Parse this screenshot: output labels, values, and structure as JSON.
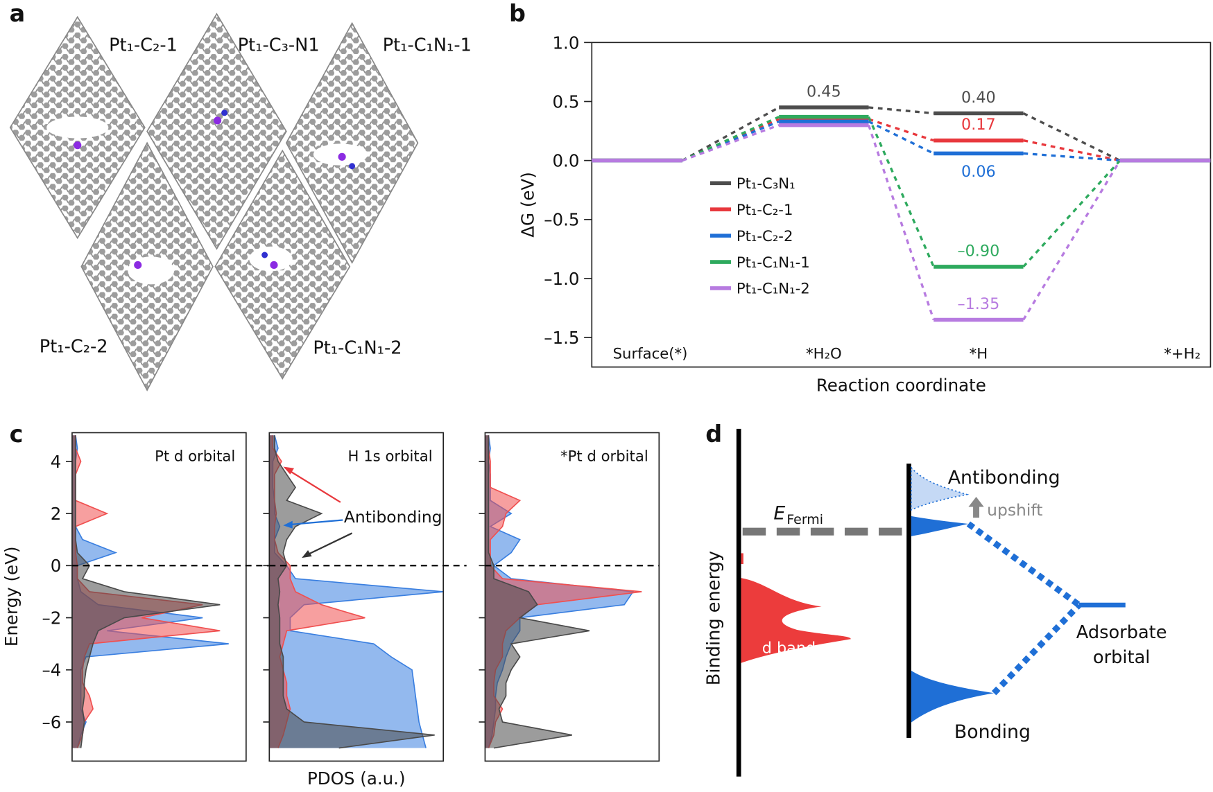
{
  "panel_labels": [
    "a",
    "b",
    "c",
    "d"
  ],
  "structures": [
    {
      "label": "Pt₁-C₂-1"
    },
    {
      "label": "Pt₁-C₃-N1"
    },
    {
      "label": "Pt₁-C₁N₁-1"
    },
    {
      "label": "Pt₁-C₂-2"
    },
    {
      "label": "Pt₁-C₁N₁-2"
    }
  ],
  "chart_data": [
    {
      "type": "level",
      "ylabel": "ΔG (eV)",
      "xlabel": "Reaction coordinate",
      "categories": [
        "Surface(*)",
        "*H₂O",
        "*H",
        "*+H₂"
      ],
      "ylim": [
        -1.75,
        1.0
      ],
      "yticks": [
        {
          "value": 1.0,
          "label": "1.0"
        },
        0.5,
        {
          "value": 0,
          "label": "0.0"
        },
        {
          "value": -0.5,
          "label": "–0.5"
        },
        {
          "value": -1.0,
          "label": "–1.0"
        },
        {
          "value": -1.5,
          "label": "–1.5"
        }
      ],
      "legend": "left",
      "series": [
        {
          "name": "Pt₁-C₃N₁",
          "color": "#4d4d4d",
          "values": [
            0,
            0.45,
            0.4,
            0
          ],
          "value_labels": [
            null,
            "0.45",
            "0.40",
            null
          ],
          "label_position": "above"
        },
        {
          "name": "Pt₁-C₂-1",
          "color": "#e8383d",
          "values": [
            0,
            0.35,
            0.17,
            0
          ],
          "value_labels": [
            null,
            null,
            "0.17",
            null
          ],
          "label_position": "above"
        },
        {
          "name": "Pt₁-C₂-2",
          "color": "#1f6fd6",
          "values": [
            0,
            0.33,
            0.06,
            0
          ],
          "value_labels": [
            null,
            null,
            "0.06",
            null
          ],
          "label_position": "below"
        },
        {
          "name": "Pt₁-C₁N₁-1",
          "color": "#2eaa5e",
          "values": [
            0,
            0.37,
            -0.9,
            0
          ],
          "value_labels": [
            null,
            null,
            "–0.90",
            null
          ],
          "label_position": "above"
        },
        {
          "name": "Pt₁-C₁N₁-2",
          "color": "#b77be0",
          "values": [
            0,
            0.3,
            -1.35,
            0
          ],
          "value_labels": [
            null,
            null,
            "–1.35",
            null
          ],
          "label_position": "above"
        }
      ]
    },
    {
      "type": "area",
      "title": "Pt d orbital",
      "ylabel": "Energy (eV)",
      "ylim": [
        -7.5,
        5.1
      ],
      "xlim": [
        0,
        1
      ],
      "yticks": [
        {
          "value": -6,
          "label": "–6"
        },
        {
          "value": -4,
          "label": "–4"
        },
        {
          "value": -2,
          "label": "–2"
        },
        0,
        2,
        4
      ],
      "y": [
        -7,
        -6.5,
        -6,
        -5.5,
        -5,
        -4.5,
        -4,
        -3.5,
        -3,
        -2.5,
        -2,
        -1.5,
        -1,
        -0.5,
        0,
        0.5,
        1,
        1.5,
        2,
        2.5,
        3,
        3.5,
        4,
        4.5,
        5
      ],
      "series": [
        {
          "color": "#3a7fe0",
          "values": [
            0.03,
            0.05,
            0.08,
            0.05,
            0.05,
            0.05,
            0.05,
            0.08,
            0.9,
            0.2,
            0.75,
            0.15,
            0.05,
            0.03,
            0.03,
            0.25,
            0.06,
            0.02,
            0.02,
            0.02,
            0.02,
            0.02,
            0.02,
            0.03,
            0.02
          ]
        },
        {
          "color": "#f05050",
          "values": [
            0.03,
            0.06,
            0.07,
            0.12,
            0.1,
            0.06,
            0.06,
            0.07,
            0.1,
            0.85,
            0.4,
            0.75,
            0.1,
            0.03,
            0.03,
            0.02,
            0.02,
            0.02,
            0.2,
            0.02,
            0.02,
            0.02,
            0.05,
            0.02,
            0.02
          ]
        },
        {
          "color": "#4a4a4a",
          "values": [
            0.05,
            0.06,
            0.07,
            0.06,
            0.07,
            0.07,
            0.08,
            0.1,
            0.12,
            0.15,
            0.3,
            0.85,
            0.3,
            0.06,
            0.1,
            0.03,
            0.02,
            0.02,
            0.02,
            0.02,
            0.02,
            0.02,
            0.02,
            0.02,
            0.02
          ]
        }
      ]
    },
    {
      "type": "area",
      "title": "H 1s orbital",
      "xlabel": "PDOS (a.u.)",
      "annotations": [
        "Antibonding"
      ],
      "ylim": [
        -7.5,
        5.1
      ],
      "xlim": [
        0,
        1
      ],
      "yticks": [
        -6,
        -4,
        -2,
        0,
        2,
        4
      ],
      "y": [
        -7,
        -6.5,
        -6,
        -5.5,
        -5,
        -4.5,
        -4,
        -3.5,
        -3,
        -2.5,
        -2,
        -1.5,
        -1,
        -0.5,
        0,
        0.5,
        1,
        1.5,
        2,
        2.5,
        3,
        3.5,
        4,
        4.5,
        5
      ],
      "series": [
        {
          "color": "#3a7fe0",
          "values": [
            0.9,
            0.88,
            0.86,
            0.85,
            0.84,
            0.83,
            0.82,
            0.7,
            0.6,
            0.12,
            0.12,
            0.2,
            1.0,
            0.15,
            0.1,
            0.03,
            0.03,
            0.06,
            0.03,
            0.03,
            0.02,
            0.02,
            0.02,
            0.05,
            0.03
          ]
        },
        {
          "color": "#f05050",
          "values": [
            0.05,
            0.08,
            0.1,
            0.12,
            0.1,
            0.1,
            0.08,
            0.06,
            0.08,
            0.1,
            0.55,
            0.3,
            0.15,
            0.12,
            0.12,
            0.05,
            0.03,
            0.03,
            0.04,
            0.03,
            0.03,
            0.03,
            0.07,
            0.02,
            0.02
          ]
        },
        {
          "color": "#4a4a4a",
          "values": [
            0.4,
            0.95,
            0.2,
            0.1,
            0.08,
            0.08,
            0.08,
            0.08,
            0.06,
            0.06,
            0.06,
            0.05,
            0.06,
            0.05,
            0.1,
            0.08,
            0.1,
            0.15,
            0.3,
            0.1,
            0.15,
            0.1,
            0.05,
            0.03,
            0.03
          ]
        }
      ]
    },
    {
      "type": "area",
      "title": "*Pt d orbital",
      "ylim": [
        -7.5,
        5.1
      ],
      "xlim": [
        0,
        1
      ],
      "yticks": [
        -6,
        -4,
        -2,
        0,
        2,
        4
      ],
      "y": [
        -7,
        -6.5,
        -6,
        -5.5,
        -5,
        -4.5,
        -4,
        -3.5,
        -3,
        -2.5,
        -2,
        -1.5,
        -1,
        -0.5,
        0,
        0.5,
        1,
        1.5,
        2,
        2.5,
        3,
        3.5,
        4,
        4.5,
        5
      ],
      "series": [
        {
          "color": "#3a7fe0",
          "values": [
            0.02,
            0.04,
            0.05,
            0.06,
            0.06,
            0.07,
            0.1,
            0.12,
            0.15,
            0.2,
            0.2,
            0.8,
            0.85,
            0.15,
            0.05,
            0.15,
            0.2,
            0.03,
            0.15,
            0.03,
            0.03,
            0.03,
            0.02,
            0.03,
            0.02
          ]
        },
        {
          "color": "#f05050",
          "values": [
            0.02,
            0.05,
            0.06,
            0.1,
            0.05,
            0.05,
            0.06,
            0.1,
            0.1,
            0.12,
            0.2,
            0.3,
            0.9,
            0.1,
            0.03,
            0.03,
            0.03,
            0.1,
            0.12,
            0.2,
            0.03,
            0.03,
            0.03,
            0.02,
            0.02
          ]
        },
        {
          "color": "#4a4a4a",
          "values": [
            0.05,
            0.5,
            0.1,
            0.08,
            0.12,
            0.12,
            0.15,
            0.2,
            0.15,
            0.6,
            0.2,
            0.3,
            0.25,
            0.05,
            0.05,
            0.02,
            0.02,
            0.02,
            0.02,
            0.02,
            0.02,
            0.02,
            0.02,
            0.02,
            0.02
          ]
        }
      ]
    }
  ],
  "diagram": {
    "binding_energy": "Binding energy",
    "e_fermi": {
      "main": "E",
      "sub": "Fermi"
    },
    "d_bands": "d bands",
    "antibonding": "Antibonding",
    "upshift": "upshift",
    "adsorbate": [
      "Adsorbate",
      "orbital"
    ],
    "bonding": "Bonding"
  }
}
